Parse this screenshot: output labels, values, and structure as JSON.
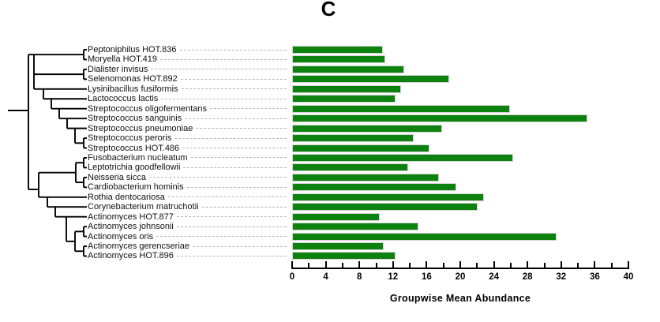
{
  "panel_label": "C",
  "chart_data": {
    "type": "bar",
    "orientation": "horizontal",
    "title": "",
    "xlabel": "Groupwise Mean Abundance",
    "xlim": [
      0,
      40
    ],
    "x_major_ticks": [
      0,
      4,
      8,
      12,
      16,
      20,
      24,
      28,
      32,
      36,
      40
    ],
    "x_minor_tick_step": 2,
    "grid": false,
    "legend": false,
    "bar_color": "#0e820e",
    "leader_line_style": "dashed",
    "has_dendrogram": true,
    "dendrogram_position": "left",
    "categories": [
      "Peptoniphilus HOT.836",
      "Moryella HOT.419",
      "Dialister invisus",
      "Selenomonas HOT.892",
      "Lysinibacillus fusiformis",
      "Lactococcus lactis",
      "Streptococcus oligofermentans",
      "Streptococcus sanguinis",
      "Streptococcus pneumoniae",
      "Streptococcus peroris",
      "Streptococcus HOT.486",
      "Fusobacterium nucleatum",
      "Leptotrichia goodfellowii",
      "Neisseria sicca",
      "Cardiobacterium hominis",
      "Rothia dentocariosa",
      "Corynebacterium matruchotii",
      "Actinomyces HOT.877",
      "Actinomyces johnsonii",
      "Actinomyces oris",
      "Actinomyces gerencseriae",
      "Actinomyces HOT.896"
    ],
    "values": [
      10.8,
      11.1,
      13.3,
      18.7,
      13.0,
      12.3,
      25.9,
      35.1,
      17.8,
      14.5,
      16.3,
      26.3,
      13.8,
      17.5,
      19.5,
      22.8,
      22.1,
      10.4,
      15.0,
      31.5,
      10.9,
      12.3
    ]
  }
}
